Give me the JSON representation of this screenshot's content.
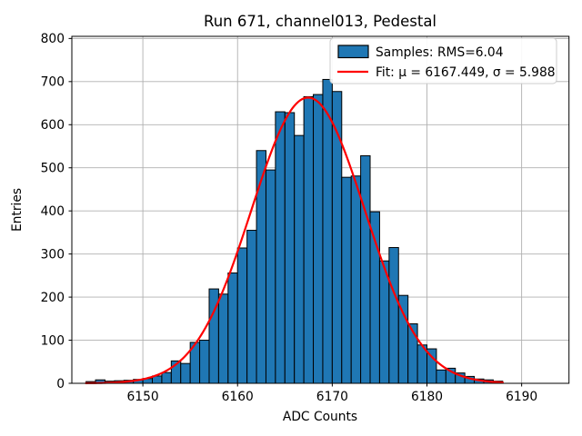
{
  "figure": {
    "title": "Run 671, channel013, Pedestal",
    "xlabel": "ADC Counts",
    "ylabel": "Entries"
  },
  "legend": {
    "samples_label": "Samples: RMS=6.04",
    "fit_label": "Fit: μ = 6167.449, σ = 5.988"
  },
  "colors": {
    "bar_fill": "#1f77b4",
    "bar_edge": "#000000",
    "fit_line": "#ff0000",
    "grid": "#b0b0b0",
    "axes_edge": "#000000",
    "legend_border": "#cccccc",
    "background": "#ffffff"
  },
  "chart_data": {
    "type": "bar",
    "title": "Run 671, channel013, Pedestal",
    "xlabel": "ADC Counts",
    "ylabel": "Entries",
    "bin_width": 1,
    "bin_left_edges": [
      6144,
      6145,
      6146,
      6147,
      6148,
      6149,
      6150,
      6151,
      6152,
      6153,
      6154,
      6155,
      6156,
      6157,
      6158,
      6159,
      6160,
      6161,
      6162,
      6163,
      6164,
      6165,
      6166,
      6167,
      6168,
      6169,
      6170,
      6171,
      6172,
      6173,
      6174,
      6175,
      6176,
      6177,
      6178,
      6179,
      6180,
      6181,
      6182,
      6183,
      6184,
      6185,
      6186,
      6187
    ],
    "values": [
      4,
      8,
      5,
      6,
      7,
      9,
      11,
      17,
      25,
      52,
      46,
      95,
      100,
      219,
      207,
      256,
      314,
      355,
      540,
      495,
      630,
      628,
      575,
      665,
      670,
      705,
      677,
      478,
      481,
      528,
      398,
      284,
      315,
      204,
      138,
      89,
      80,
      31,
      35,
      24,
      16,
      10,
      8,
      5
    ],
    "x_ticks": [
      6150,
      6160,
      6170,
      6180,
      6190
    ],
    "y_ticks": [
      0,
      100,
      200,
      300,
      400,
      500,
      600,
      700,
      800
    ],
    "xlim": [
      6142.5,
      6195.0
    ],
    "ylim": [
      0,
      805
    ],
    "grid": true,
    "legend_position": "upper right",
    "series": [
      {
        "name": "Samples: RMS=6.04",
        "type": "histogram"
      },
      {
        "name": "Fit: μ = 6167.449, σ = 5.988",
        "type": "gaussian-curve"
      }
    ],
    "fit": {
      "shape": "gaussian",
      "mu": 6167.449,
      "sigma": 5.988,
      "amplitude": 663,
      "rms": 6.04,
      "x_range": [
        6144,
        6188
      ]
    }
  }
}
